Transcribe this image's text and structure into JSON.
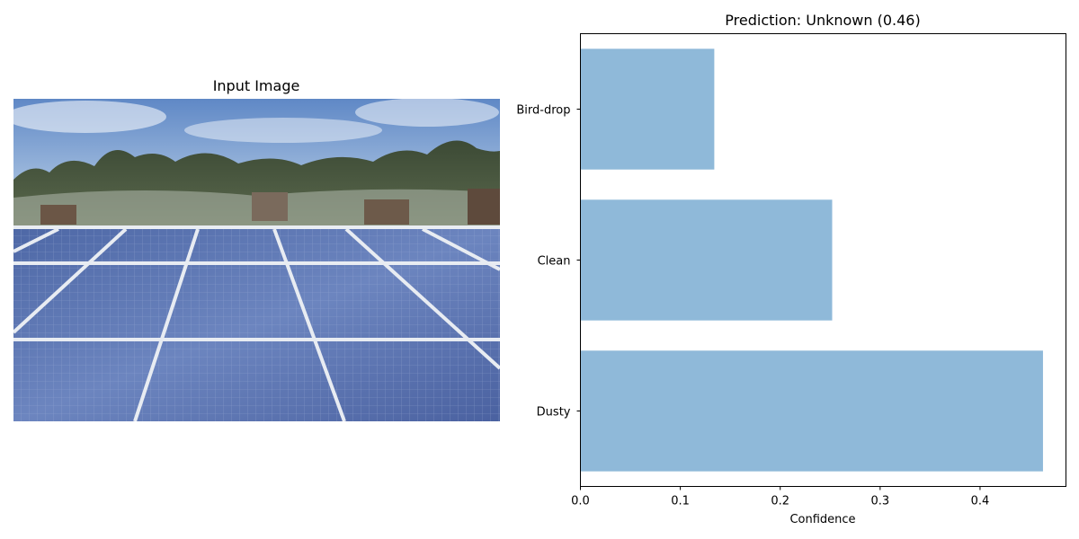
{
  "left_panel": {
    "title": "Input Image",
    "image_icon": "solar-panel-field-photo"
  },
  "chart_data": {
    "type": "bar",
    "orientation": "horizontal",
    "title": "Prediction: Unknown (0.46)",
    "xlabel": "Confidence",
    "ylabel": "",
    "categories": [
      "Dusty",
      "Clean",
      "Bird-drop"
    ],
    "values": [
      0.463,
      0.252,
      0.134
    ],
    "xlim": [
      0,
      0.486
    ],
    "xticks": [
      0.0,
      0.1,
      0.2,
      0.3,
      0.4
    ],
    "xtick_labels": [
      "0.0",
      "0.1",
      "0.2",
      "0.3",
      "0.4"
    ],
    "bar_color": "#8fb9d9",
    "grid": false,
    "legend": "none"
  }
}
